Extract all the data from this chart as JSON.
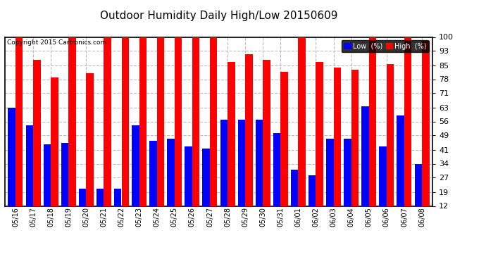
{
  "title": "Outdoor Humidity Daily High/Low 20150609",
  "copyright": "Copyright 2015 Cartronics.com",
  "dates": [
    "05/16",
    "05/17",
    "05/18",
    "05/19",
    "05/20",
    "05/21",
    "05/22",
    "05/23",
    "05/24",
    "05/25",
    "05/26",
    "05/27",
    "05/28",
    "05/29",
    "05/30",
    "05/31",
    "06/01",
    "06/02",
    "06/03",
    "06/04",
    "06/05",
    "06/06",
    "06/07",
    "06/08"
  ],
  "high": [
    100,
    88,
    79,
    100,
    81,
    100,
    100,
    100,
    100,
    100,
    100,
    103,
    87,
    91,
    88,
    82,
    100,
    87,
    84,
    83,
    100,
    86,
    100,
    98
  ],
  "low": [
    63,
    54,
    44,
    45,
    21,
    21,
    21,
    54,
    46,
    47,
    43,
    42,
    57,
    57,
    57,
    50,
    31,
    28,
    47,
    47,
    64,
    43,
    59,
    34
  ],
  "high_color": "#ff0000",
  "low_color": "#0000ff",
  "bg_color": "#ffffff",
  "border_color": "#000000",
  "grid_color": "#bbbbbb",
  "yticks": [
    12,
    19,
    27,
    34,
    41,
    49,
    56,
    63,
    71,
    78,
    85,
    93,
    100
  ],
  "ymin": 12,
  "ymax": 100,
  "legend_low_label": "Low  (%)",
  "legend_high_label": "High  (%)",
  "bar_width": 0.42
}
